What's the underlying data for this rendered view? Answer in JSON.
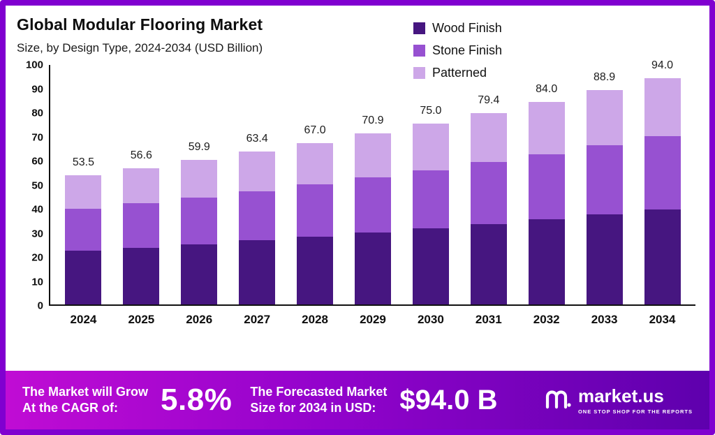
{
  "header": {
    "title": "Global Modular Flooring Market",
    "subtitle": "Size, by Design Type, 2024-2034 (USD Billion)"
  },
  "legend": [
    {
      "label": "Wood Finish",
      "color": "#461680"
    },
    {
      "label": "Stone Finish",
      "color": "#9751d1"
    },
    {
      "label": "Patterned",
      "color": "#cda7e8"
    }
  ],
  "chart_data": {
    "type": "bar",
    "stacked": true,
    "title": "Global Modular Flooring Market Size, by Design Type, 2024-2034 (USD Billion)",
    "categories": [
      "2024",
      "2025",
      "2026",
      "2027",
      "2028",
      "2029",
      "2030",
      "2031",
      "2032",
      "2033",
      "2034"
    ],
    "totals": [
      53.5,
      56.6,
      59.9,
      63.4,
      67.0,
      70.9,
      75.0,
      79.4,
      84.0,
      88.9,
      94.0
    ],
    "total_labels": [
      "53.5",
      "56.6",
      "59.9",
      "63.4",
      "67.0",
      "70.9",
      "75.0",
      "79.4",
      "84.0",
      "88.9",
      "94.0"
    ],
    "series": [
      {
        "name": "Wood Finish",
        "color": "#461680",
        "values": [
          22.2,
          23.5,
          24.9,
          26.6,
          28.1,
          29.8,
          31.5,
          33.3,
          35.3,
          37.3,
          39.5
        ]
      },
      {
        "name": "Stone Finish",
        "color": "#9751d1",
        "values": [
          17.4,
          18.4,
          19.5,
          20.5,
          21.8,
          23.0,
          24.2,
          25.7,
          27.1,
          28.7,
          30.3
        ]
      },
      {
        "name": "Patterned",
        "color": "#cda7e8",
        "values": [
          13.9,
          14.7,
          15.5,
          16.3,
          17.1,
          18.1,
          19.3,
          20.4,
          21.6,
          22.9,
          24.2
        ]
      }
    ],
    "ylim": [
      0,
      100
    ],
    "yticks": [
      0,
      10,
      20,
      30,
      40,
      50,
      60,
      70,
      80,
      90,
      100
    ],
    "legend_position": "top-right",
    "grid": false
  },
  "footer": {
    "left_line1": "The Market will Grow",
    "left_line2": "At the CAGR of:",
    "cagr_value": "5.8%",
    "mid_line1": "The Forecasted Market",
    "mid_line2": "Size for 2034 in USD:",
    "forecast_value": "$94.0 B",
    "brand": "market.us",
    "brand_tagline": "One Stop Shop For The Reports"
  }
}
